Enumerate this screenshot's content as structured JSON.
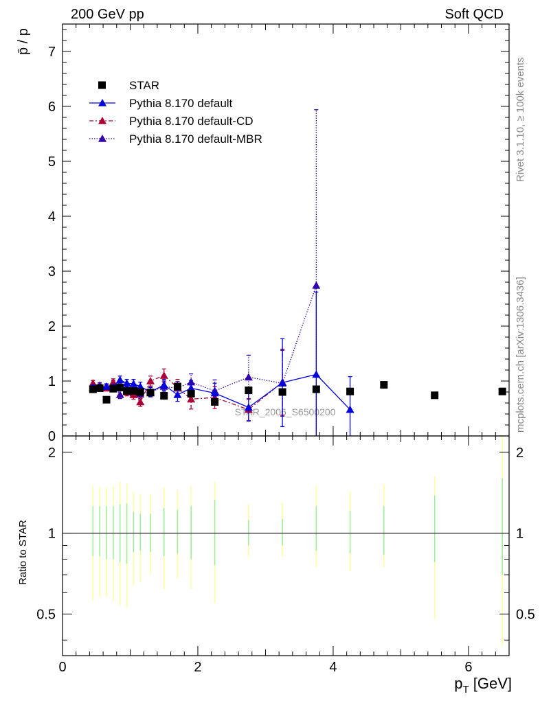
{
  "header": {
    "left_title": "200 GeV pp",
    "right_title": "Soft QCD"
  },
  "side_text": {
    "rivet": "Rivet 3.1.10, ≥ 100k events",
    "mcplots": "mcplots.cern.ch [arXiv:1306.3436]"
  },
  "analysis_label": "STAR_2006_S6500200",
  "colors": {
    "star": "#000000",
    "default": "#0000dd",
    "cd": "#aa0033",
    "mbr": "#3300aa",
    "band_outer": "#ffff99",
    "band_inner": "#99ee99"
  },
  "chart_data": [
    {
      "type": "scatter",
      "panel": "main",
      "ylabel": "p̄ / p",
      "xlim": [
        0,
        6.6
      ],
      "ylim": [
        0,
        7.5
      ],
      "y_ticks": [
        0,
        1,
        2,
        3,
        4,
        5,
        6,
        7
      ],
      "legend_position": "top-left",
      "series": [
        {
          "name": "STAR",
          "marker": "square",
          "x": [
            0.45,
            0.55,
            0.65,
            0.75,
            0.85,
            0.95,
            1.05,
            1.15,
            1.3,
            1.5,
            1.7,
            1.9,
            2.25,
            2.75,
            3.25,
            3.75,
            4.25,
            4.75,
            5.5,
            6.5
          ],
          "y": [
            0.85,
            0.87,
            0.66,
            0.86,
            0.88,
            0.82,
            0.82,
            0.8,
            0.79,
            0.73,
            0.9,
            0.77,
            0.62,
            0.83,
            0.8,
            0.85,
            0.81,
            0.93,
            0.74,
            0.81
          ]
        },
        {
          "name": "Pythia 8.170 default",
          "marker": "triangle",
          "line": "solid",
          "x": [
            0.45,
            0.55,
            0.65,
            0.75,
            0.85,
            0.95,
            1.05,
            1.15,
            1.3,
            1.5,
            1.7,
            1.9,
            2.25,
            2.75,
            3.25,
            3.75,
            4.25
          ],
          "y": [
            0.88,
            0.89,
            0.9,
            0.88,
            1.02,
            0.96,
            0.95,
            0.9,
            0.8,
            0.93,
            0.75,
            0.87,
            0.78,
            0.52,
            0.97,
            1.12,
            0.48
          ],
          "err": [
            0.05,
            0.05,
            0.05,
            0.06,
            0.07,
            0.07,
            0.08,
            0.08,
            0.08,
            0.1,
            0.12,
            0.14,
            0.18,
            0.25,
            0.8,
            1.5,
            0.6
          ]
        },
        {
          "name": "Pythia 8.170 default-CD",
          "marker": "triangle",
          "line": "dashdot",
          "x": [
            0.45,
            0.55,
            0.65,
            0.75,
            0.85,
            0.95,
            1.05,
            1.15,
            1.3,
            1.5,
            1.7,
            1.9,
            2.25,
            2.75,
            3.25
          ],
          "y": [
            0.96,
            0.9,
            0.87,
            0.98,
            0.9,
            0.8,
            0.75,
            0.62,
            1.0,
            1.1,
            0.88,
            0.67,
            0.7,
            0.48,
            0.98
          ],
          "err": [
            0.05,
            0.05,
            0.05,
            0.06,
            0.07,
            0.07,
            0.08,
            0.08,
            0.09,
            0.12,
            0.15,
            0.18,
            0.2,
            0.2,
            0.6
          ]
        },
        {
          "name": "Pythia 8.170 default-MBR",
          "marker": "triangle",
          "line": "dotted",
          "x": [
            0.45,
            0.55,
            0.65,
            0.75,
            0.85,
            0.95,
            1.05,
            1.15,
            1.3,
            1.5,
            1.7,
            1.9,
            2.25,
            2.75,
            3.25,
            3.75
          ],
          "y": [
            0.88,
            0.92,
            0.88,
            0.95,
            0.75,
            0.82,
            0.78,
            0.76,
            0.8,
            0.9,
            0.87,
            0.98,
            0.82,
            1.07,
            0.96,
            2.74
          ],
          "err": [
            0.05,
            0.05,
            0.05,
            0.06,
            0.07,
            0.07,
            0.08,
            0.08,
            0.09,
            0.1,
            0.12,
            0.15,
            0.2,
            0.4,
            0.6,
            3.2
          ]
        }
      ]
    },
    {
      "type": "scatter",
      "panel": "ratio",
      "ylabel": "Ratio to STAR",
      "xlabel": "p_T [GeV]",
      "xlim": [
        0,
        6.6
      ],
      "ylim": [
        0.35,
        2.3
      ],
      "y_ticks": [
        0.5,
        1,
        2
      ],
      "x_ticks": [
        0,
        2,
        4,
        6
      ],
      "reference_line": 1,
      "band": {
        "x": [
          0.45,
          0.55,
          0.65,
          0.75,
          0.85,
          0.95,
          1.05,
          1.15,
          1.3,
          1.5,
          1.7,
          1.9,
          2.25,
          2.75,
          3.25,
          3.75,
          4.25,
          4.75,
          5.5,
          6.5
        ],
        "outer_lo": [
          0.56,
          0.58,
          0.58,
          0.56,
          0.54,
          0.53,
          0.64,
          0.66,
          0.7,
          0.62,
          0.68,
          0.62,
          0.55,
          0.82,
          0.82,
          0.75,
          0.72,
          0.75,
          0.48,
          0.38
        ],
        "outer_hi": [
          1.5,
          1.48,
          1.48,
          1.5,
          1.55,
          1.53,
          1.42,
          1.4,
          1.4,
          1.48,
          1.45,
          1.5,
          1.55,
          1.28,
          1.3,
          1.5,
          1.43,
          1.52,
          1.62,
          2.3
        ],
        "inner_lo": [
          0.82,
          0.82,
          0.8,
          0.8,
          0.78,
          0.77,
          0.85,
          0.86,
          0.85,
          0.82,
          0.84,
          0.8,
          0.76,
          0.9,
          0.9,
          0.86,
          0.84,
          0.83,
          0.78,
          0.7
        ],
        "inner_hi": [
          1.26,
          1.26,
          1.26,
          1.26,
          1.28,
          1.29,
          1.2,
          1.18,
          1.18,
          1.24,
          1.22,
          1.26,
          1.33,
          1.12,
          1.13,
          1.26,
          1.21,
          1.26,
          1.38,
          1.6
        ]
      }
    }
  ],
  "legend": [
    {
      "name": "STAR",
      "marker": "square",
      "line": "none"
    },
    {
      "name": "Pythia 8.170 default",
      "marker": "triangle",
      "line": "solid"
    },
    {
      "name": "Pythia 8.170 default-CD",
      "marker": "triangle",
      "line": "dashdot"
    },
    {
      "name": "Pythia 8.170 default-MBR",
      "marker": "triangle",
      "line": "dotted"
    }
  ]
}
